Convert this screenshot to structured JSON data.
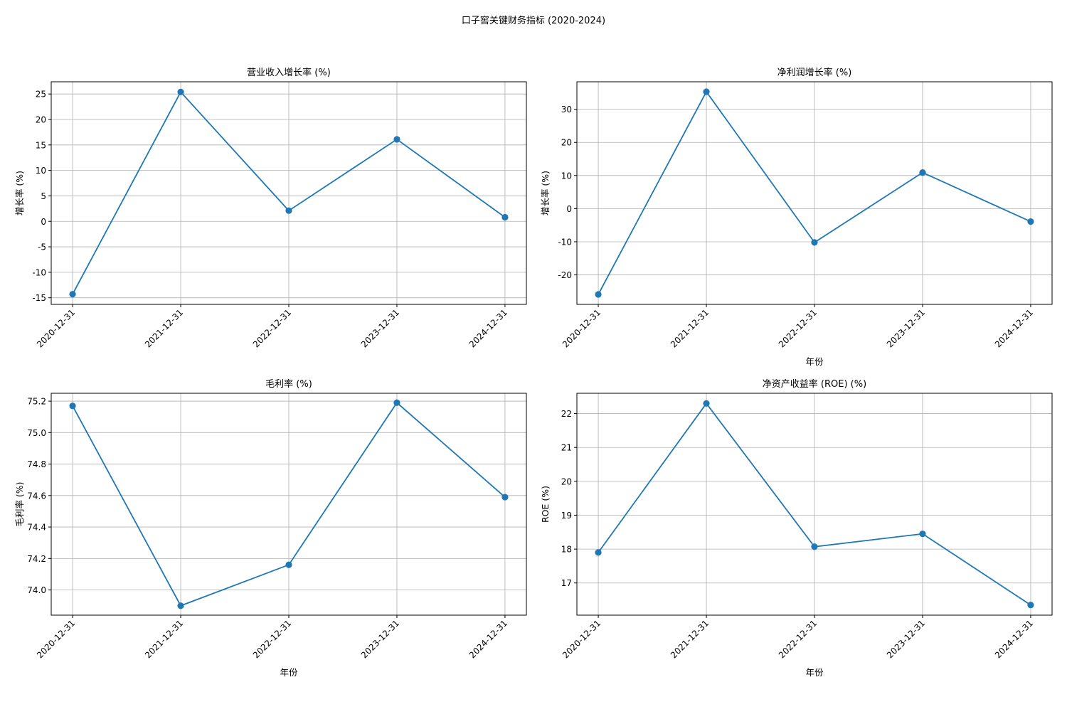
{
  "suptitle": "口子窖关键财务指标 (2020-2024)",
  "colors": {
    "series": "#1f77b4",
    "grid": "#b0b0b0"
  },
  "chart_data": [
    {
      "type": "line",
      "title": "营业收入增长率 (%)",
      "xlabel": "",
      "ylabel": "增长率 (%)",
      "x": [
        "2020-12-31",
        "2021-12-31",
        "2022-12-31",
        "2023-12-31",
        "2024-12-31"
      ],
      "values": [
        -14.3,
        25.4,
        2.1,
        16.1,
        0.8
      ],
      "ylim": [
        -16.3,
        27.4
      ],
      "yticks": [
        -15,
        -10,
        -5,
        0,
        5,
        10,
        15,
        20,
        25
      ],
      "ytick_labels": [
        "-15",
        "-10",
        "-5",
        "0",
        "5",
        "10",
        "15",
        "20",
        "25"
      ],
      "grid": true
    },
    {
      "type": "line",
      "title": "净利润增长率 (%)",
      "xlabel": "年份",
      "ylabel": "增长率 (%)",
      "x": [
        "2020-12-31",
        "2021-12-31",
        "2022-12-31",
        "2023-12-31",
        "2024-12-31"
      ],
      "values": [
        -25.9,
        35.3,
        -10.2,
        10.9,
        -3.9
      ],
      "ylim": [
        -28.9,
        38.3
      ],
      "yticks": [
        -20,
        -10,
        0,
        10,
        20,
        30
      ],
      "ytick_labels": [
        "-20",
        "-10",
        "0",
        "10",
        "20",
        "30"
      ],
      "grid": true
    },
    {
      "type": "line",
      "title": "毛利率 (%)",
      "xlabel": "年份",
      "ylabel": "毛利率 (%)",
      "x": [
        "2020-12-31",
        "2021-12-31",
        "2022-12-31",
        "2023-12-31",
        "2024-12-31"
      ],
      "values": [
        75.17,
        73.9,
        74.16,
        75.19,
        74.59
      ],
      "ylim": [
        73.84,
        75.25
      ],
      "yticks": [
        74.0,
        74.2,
        74.4,
        74.6,
        74.8,
        75.0,
        75.2
      ],
      "ytick_labels": [
        "74.0",
        "74.2",
        "74.4",
        "74.6",
        "74.8",
        "75.0",
        "75.2"
      ],
      "grid": true
    },
    {
      "type": "line",
      "title": "净资产收益率 (ROE) (%)",
      "xlabel": "年份",
      "ylabel": "ROE (%)",
      "x": [
        "2020-12-31",
        "2021-12-31",
        "2022-12-31",
        "2023-12-31",
        "2024-12-31"
      ],
      "values": [
        17.9,
        22.3,
        18.07,
        18.45,
        16.35
      ],
      "ylim": [
        16.05,
        22.6
      ],
      "yticks": [
        17,
        18,
        19,
        20,
        21,
        22
      ],
      "ytick_labels": [
        "17",
        "18",
        "19",
        "20",
        "21",
        "22"
      ],
      "grid": true
    }
  ]
}
